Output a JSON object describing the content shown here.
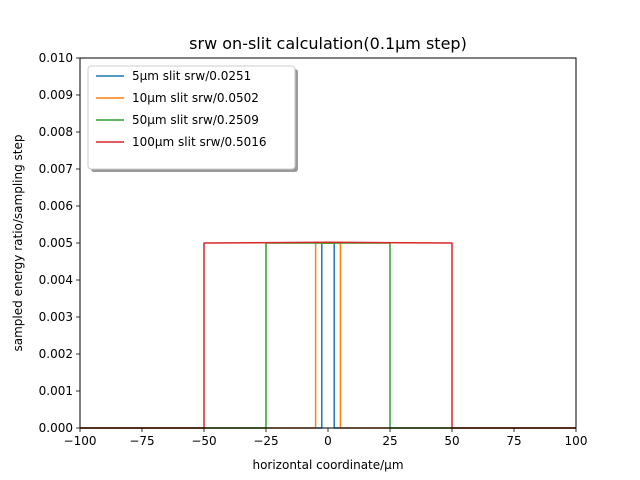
{
  "chart_data": {
    "type": "line",
    "title": "srw on-slit calculation(0.1μm step)",
    "xlabel": "horizontal coordinate/μm",
    "ylabel": "sampled energy ratio/sampling step",
    "xlim": [
      -100,
      100
    ],
    "ylim": [
      0,
      0.01
    ],
    "xticks": [
      -100,
      -75,
      -50,
      -25,
      0,
      25,
      50,
      75,
      100
    ],
    "xtick_labels": [
      "−100",
      "−75",
      "−50",
      "−25",
      "0",
      "25",
      "50",
      "75",
      "100"
    ],
    "yticks": [
      0,
      0.001,
      0.002,
      0.003,
      0.004,
      0.005,
      0.006,
      0.007,
      0.008,
      0.009,
      0.01
    ],
    "ytick_labels": [
      "0.000",
      "0.001",
      "0.002",
      "0.003",
      "0.004",
      "0.005",
      "0.006",
      "0.007",
      "0.008",
      "0.009",
      "0.010"
    ],
    "grid": false,
    "legend_position": "top-left",
    "series": [
      {
        "name": "5μm slit srw/0.0251",
        "color": "#1f77b4",
        "x": [
          -100,
          -2.5,
          -2.5,
          2.5,
          2.5,
          100
        ],
        "y": [
          0,
          0,
          0.005,
          0.005,
          0,
          0
        ]
      },
      {
        "name": "10μm slit srw/0.0502",
        "color": "#ff7f0e",
        "x": [
          -100,
          -5,
          -5,
          5,
          5,
          100
        ],
        "y": [
          0,
          0,
          0.005,
          0.005,
          0,
          0
        ]
      },
      {
        "name": "50μm slit srw/0.2509",
        "color": "#2ca02c",
        "x": [
          -100,
          -25,
          -25,
          25,
          25,
          100
        ],
        "y": [
          0,
          0,
          0.005,
          0.005,
          0,
          0
        ]
      },
      {
        "name": "100μm slit srw/0.5016",
        "color": "#d62728",
        "x": [
          -100,
          -50,
          -50,
          0,
          50,
          50,
          100
        ],
        "y": [
          0,
          0,
          0.005,
          0.00502,
          0.005,
          0,
          0
        ]
      }
    ]
  }
}
